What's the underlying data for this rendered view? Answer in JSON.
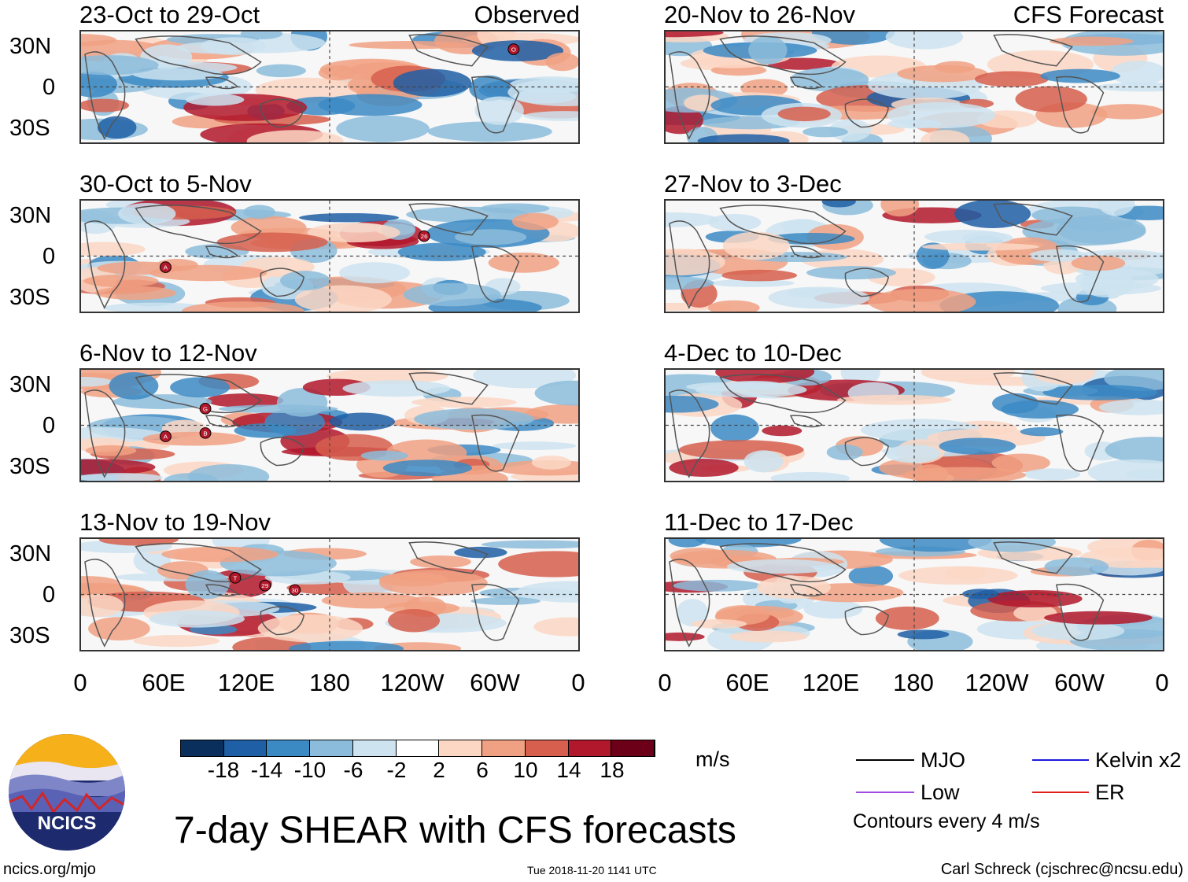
{
  "panels_left": [
    {
      "title": "23-Oct to 29-Oct",
      "tag": "Observed",
      "storms": [
        "O"
      ]
    },
    {
      "title": "30-Oct to 5-Nov",
      "tag": "",
      "storms": [
        "A",
        "26"
      ]
    },
    {
      "title": "6-Nov to 12-Nov",
      "tag": "",
      "storms": [
        "G",
        "A",
        "B"
      ]
    },
    {
      "title": "13-Nov to 19-Nov",
      "tag": "",
      "storms": [
        "T",
        "29",
        "30"
      ]
    }
  ],
  "panels_right": [
    {
      "title": "20-Nov to 26-Nov",
      "tag": "CFS Forecast"
    },
    {
      "title": "27-Nov to 3-Dec",
      "tag": ""
    },
    {
      "title": "4-Dec to 10-Dec",
      "tag": ""
    },
    {
      "title": "11-Dec to 17-Dec",
      "tag": ""
    }
  ],
  "y_ticks": [
    "30N",
    "0",
    "30S"
  ],
  "x_ticks": [
    "0",
    "60E",
    "120E",
    "180",
    "120W",
    "60W",
    "0"
  ],
  "colorbar": {
    "labels": [
      "-18",
      "-14",
      "-10",
      "-6",
      "-2",
      "2",
      "6",
      "10",
      "14",
      "18"
    ],
    "colors": [
      "#0a2f5c",
      "#1f5fa6",
      "#3c8ac4",
      "#8cbcdb",
      "#cde3f0",
      "#ffffff",
      "#fbd7c4",
      "#f1a183",
      "#d65f4d",
      "#b2182b",
      "#6b0018"
    ],
    "unit": "m/s"
  },
  "legend": {
    "items": [
      {
        "label": "MJO",
        "color": "#000000"
      },
      {
        "label": "Kelvin x2",
        "color": "#1a1adb"
      },
      {
        "label": "Low",
        "color": "#a34be0"
      },
      {
        "label": "ER",
        "color": "#e0201a"
      }
    ],
    "contours_note": "Contours every 4 m/s"
  },
  "main_title": "7-day SHEAR with CFS forecasts",
  "logo_text": "NCICS",
  "footer": {
    "url": "ncics.org/mjo",
    "timestamp": "Tue 2018-11-20 1141 UTC",
    "author": "Carl Schreck (cjschrec@ncsu.edu)"
  }
}
